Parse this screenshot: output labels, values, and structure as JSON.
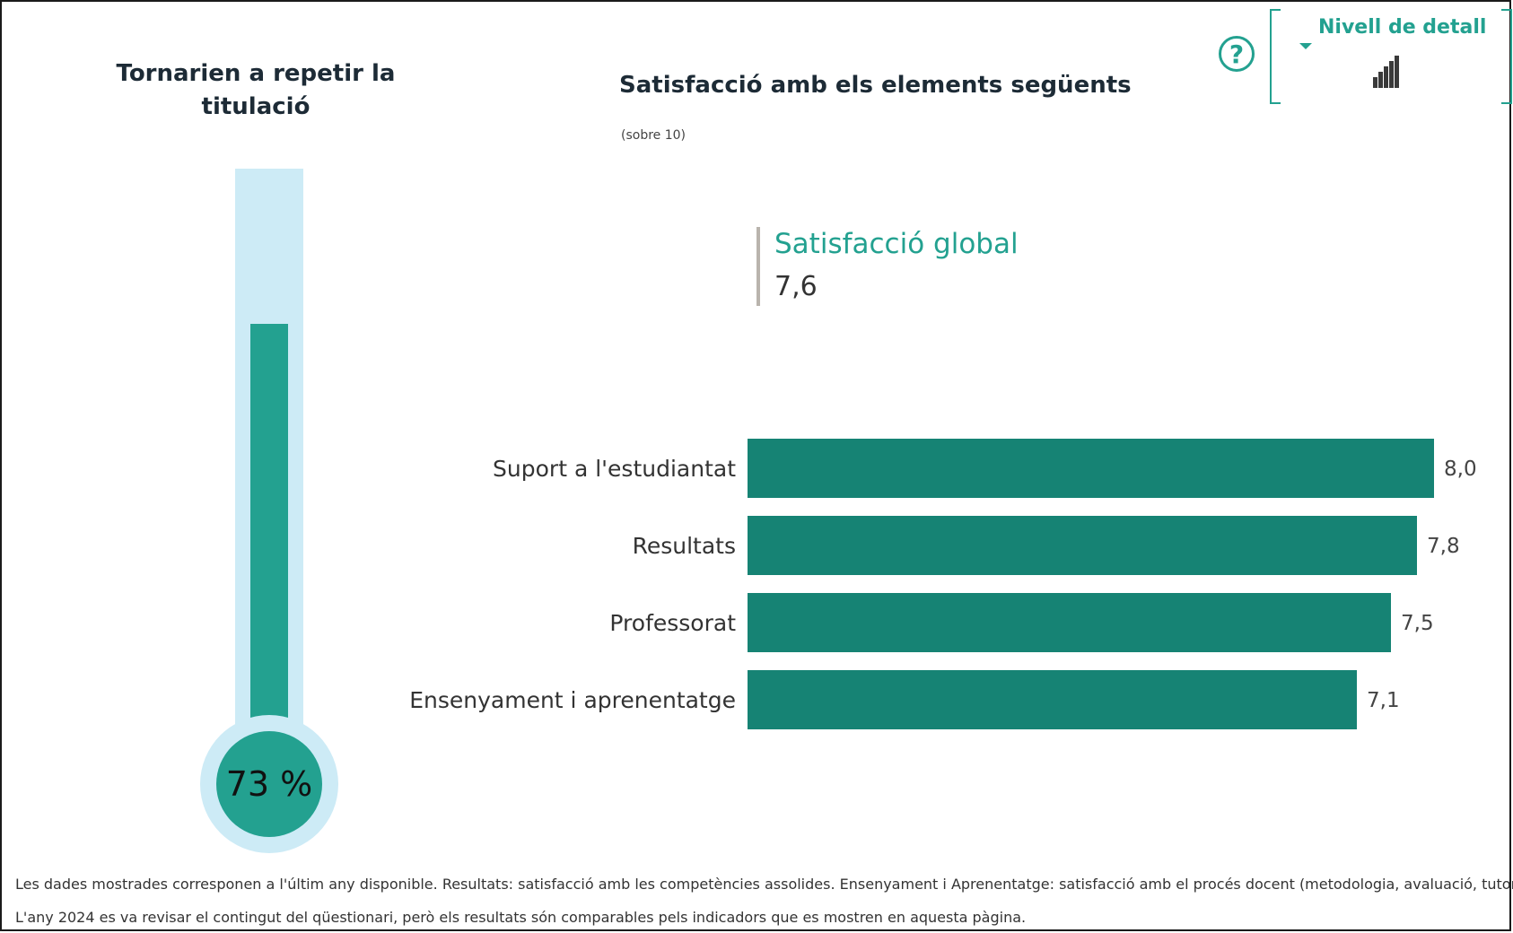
{
  "thermometer": {
    "title": "Tornarien a repetir la titulació",
    "value_percent": 73,
    "label": "73 %"
  },
  "chart": {
    "title": "Satisfacció amb els elements següents",
    "subtitle": "(sobre 10)"
  },
  "kpi": {
    "label": "Satisfacció global",
    "value": "7,6"
  },
  "controls": {
    "help_symbol": "?",
    "detail_label": "Nivell de detall"
  },
  "footnotes": [
    "Les dades mostrades corresponen a l'últim any disponible. Resultats: satisfacció amb les competències assolides. Ensenyament i Aprenentatge: satisfacció amb el procés docent (metodologia, avaluació, tutories, etc.)",
    "L'any 2024 es va revisar el contingut del qüestionari, però els resultats són comparables pels indicadors que es mostren en aquesta pàgina."
  ],
  "colors": {
    "bar": "#168374",
    "accent": "#23a190",
    "tube": "#cdebf6"
  },
  "chart_data": [
    {
      "type": "bar",
      "orientation": "horizontal",
      "categories": [
        "Suport a l'estudiantat",
        "Resultats",
        "Professorat",
        "Ensenyament i aprenentatge"
      ],
      "values": [
        8.0,
        7.8,
        7.5,
        7.1
      ],
      "value_labels": [
        "8,0",
        "7,8",
        "7,5",
        "7,1"
      ],
      "xlim": [
        0,
        8.0
      ],
      "title": "Satisfacció amb els elements següents",
      "subtitle": "(sobre 10)"
    },
    {
      "type": "bar",
      "title": "Tornarien a repetir la titulació",
      "values": [
        73
      ],
      "unit": "%",
      "ylim": [
        0,
        100
      ]
    }
  ]
}
